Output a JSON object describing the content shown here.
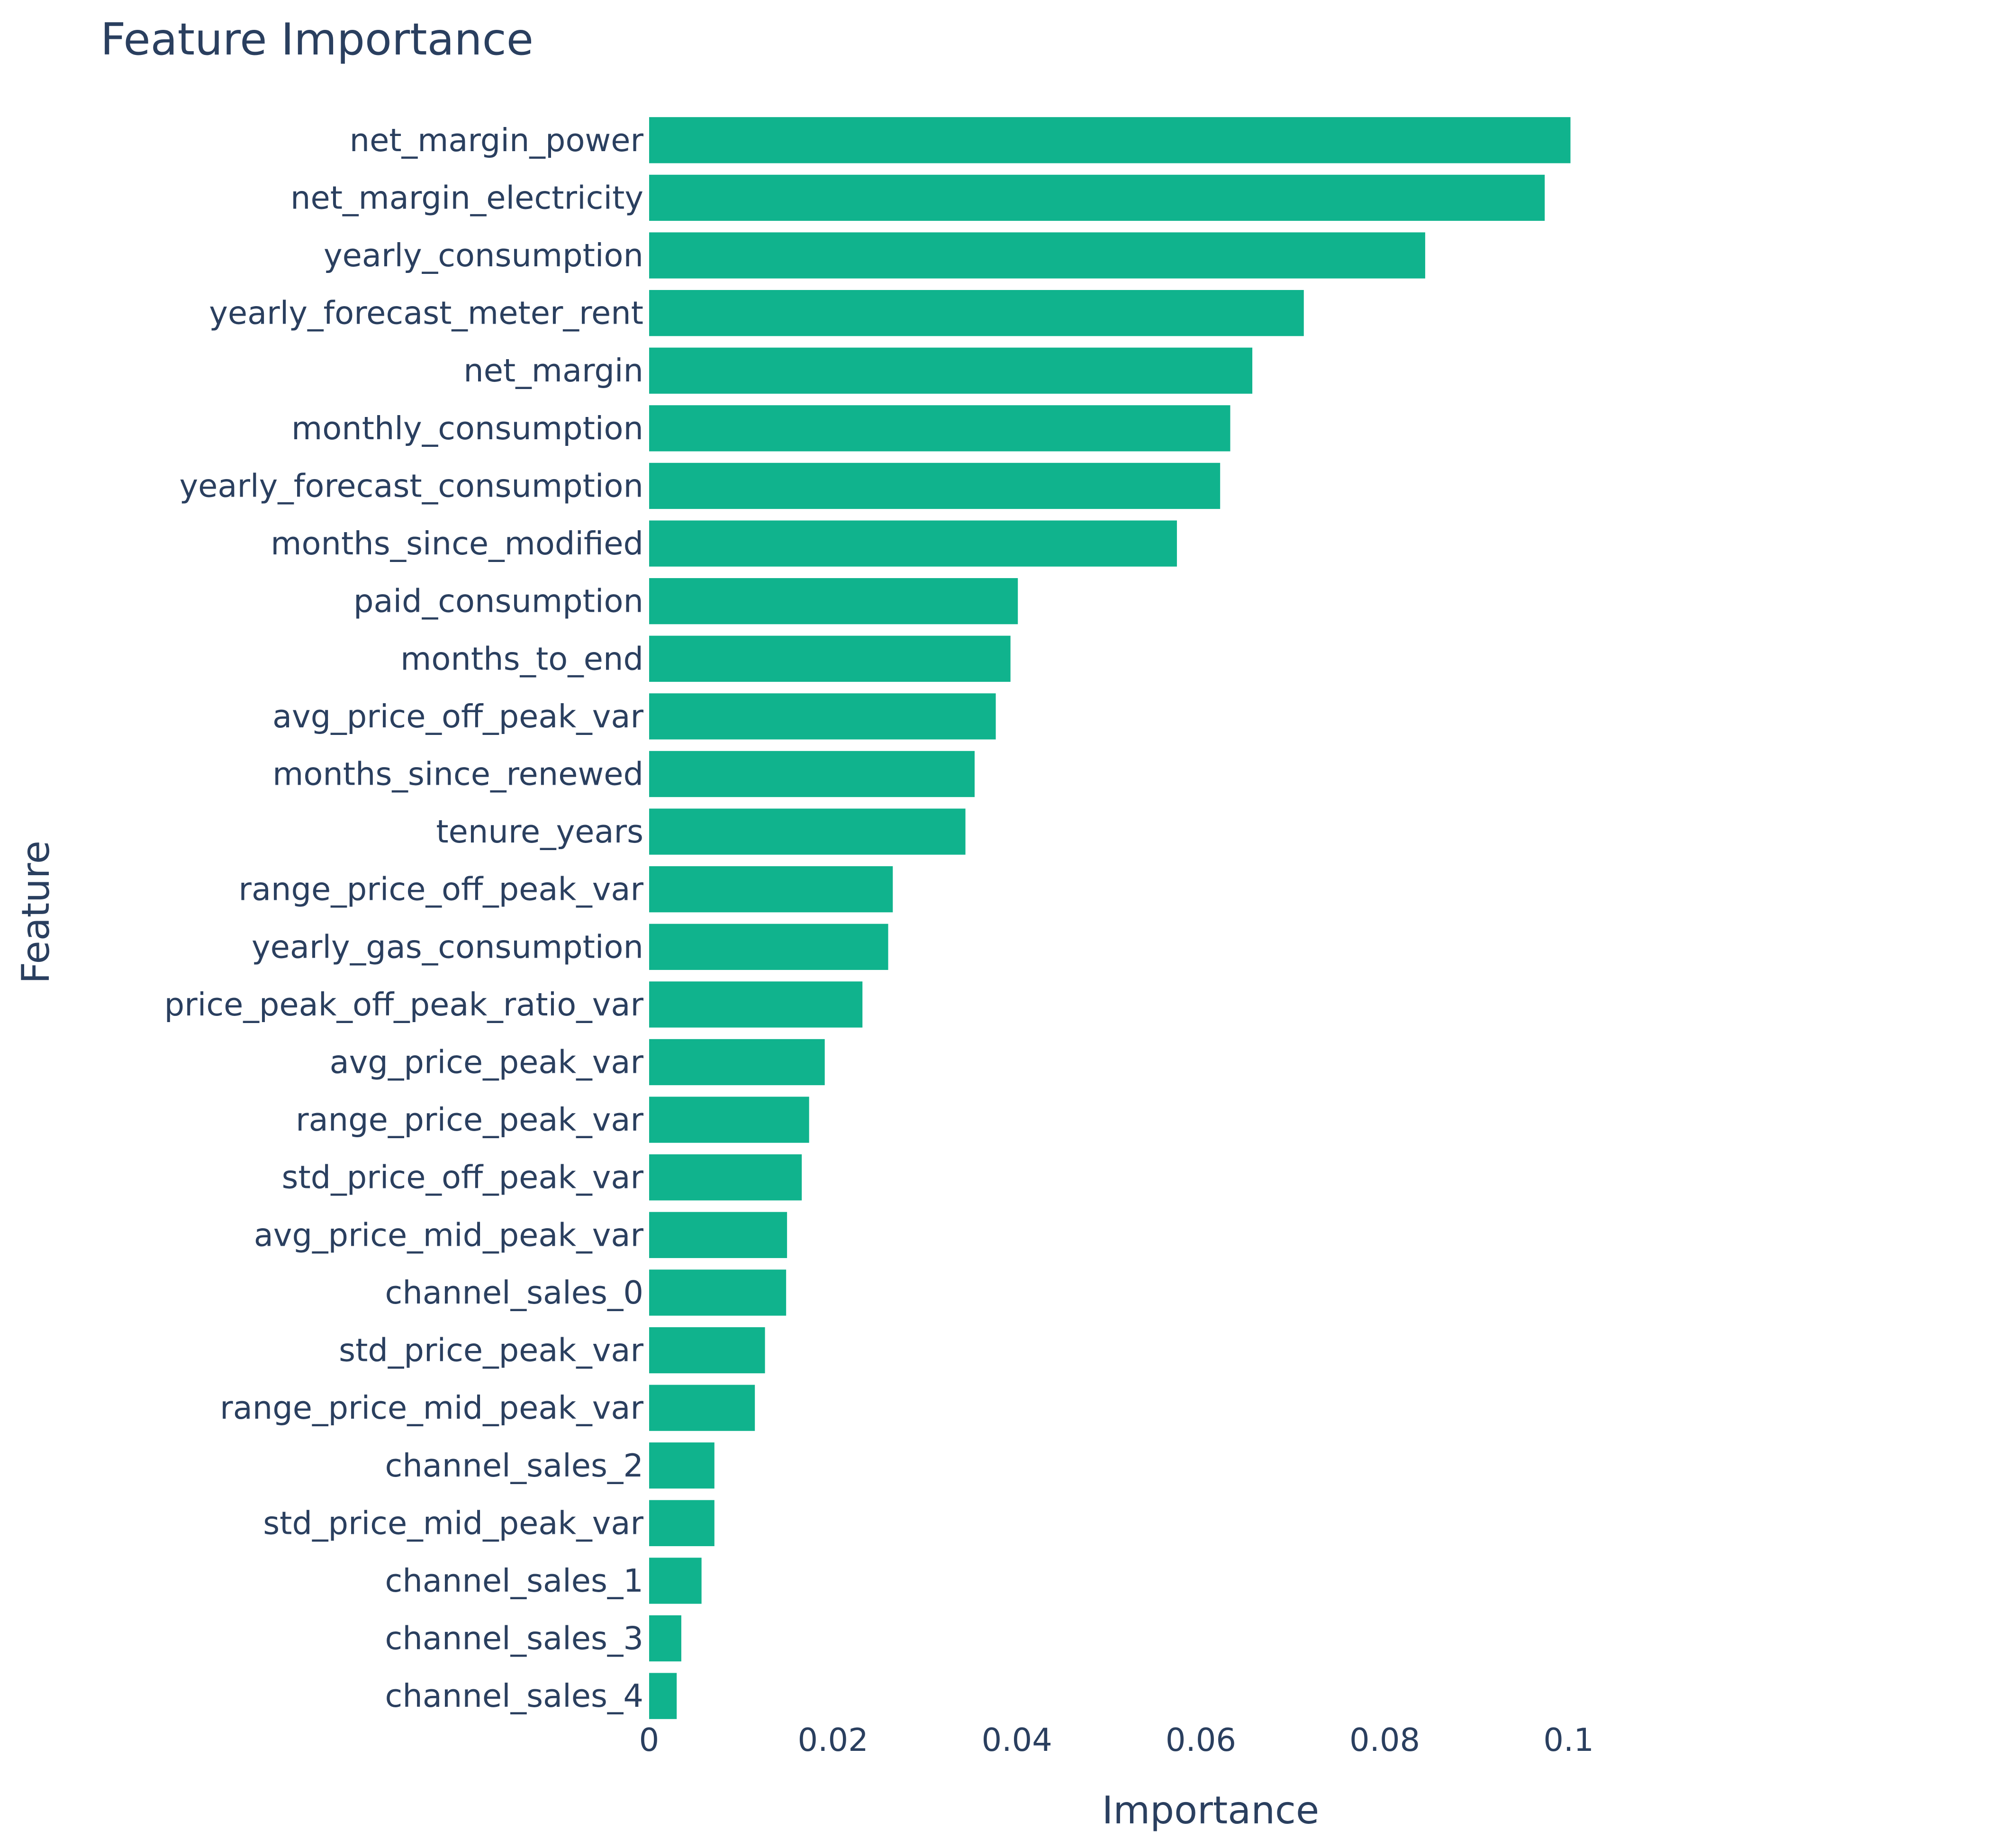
{
  "chart_data": {
    "type": "bar",
    "orientation": "horizontal",
    "title": "Feature Importance",
    "xlabel": "Importance",
    "ylabel": "Feature",
    "xlim": [
      0,
      0.118
    ],
    "xticks": [
      0,
      0.02,
      0.04,
      0.06,
      0.08,
      0.1
    ],
    "xtick_labels": [
      "0",
      "0.02",
      "0.04",
      "0.06",
      "0.08",
      "0.1"
    ],
    "grid": false,
    "legend": "none",
    "bar_color": "#10b38d",
    "text_color": "#2a3f5f",
    "categories": [
      "net_margin_power",
      "net_margin_electricity",
      "yearly_consumption",
      "yearly_forecast_meter_rent",
      "net_margin",
      "monthly_consumption",
      "yearly_forecast_consumption",
      "months_since_modified",
      "paid_consumption",
      "months_to_end",
      "avg_price_off_peak_var",
      "months_since_renewed",
      "tenure_years",
      "range_price_off_peak_var",
      "yearly_gas_consumption",
      "price_peak_off_peak_ratio_var",
      "avg_price_peak_var",
      "range_price_peak_var",
      "std_price_off_peak_var",
      "avg_price_mid_peak_var",
      "channel_sales_0",
      "std_price_peak_var",
      "range_price_mid_peak_var",
      "channel_sales_2",
      "std_price_mid_peak_var",
      "channel_sales_1",
      "channel_sales_3",
      "channel_sales_4"
    ],
    "values": [
      0.1002,
      0.0974,
      0.0844,
      0.0712,
      0.0656,
      0.0632,
      0.0621,
      0.0574,
      0.0401,
      0.0393,
      0.0377,
      0.0354,
      0.0344,
      0.0265,
      0.026,
      0.0232,
      0.0191,
      0.0174,
      0.0166,
      0.015,
      0.0149,
      0.0126,
      0.0115,
      0.0071,
      0.0071,
      0.0057,
      0.0035,
      0.003
    ]
  }
}
